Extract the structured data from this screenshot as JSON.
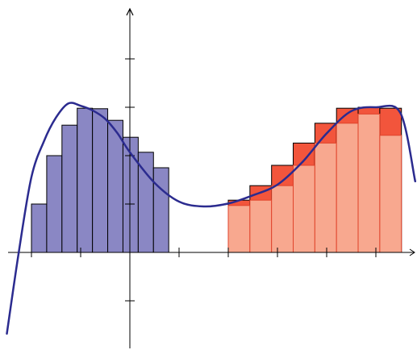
{
  "chart_data": {
    "type": "bar",
    "title": "",
    "xlabel": "",
    "ylabel": "",
    "grid": false,
    "xlim": [
      -2.5,
      6
    ],
    "ylim": [
      -2,
      5
    ],
    "x_ticks": [
      -2,
      -1,
      0,
      1,
      2,
      3,
      4,
      5
    ],
    "y_ticks": [
      -1,
      1,
      2,
      3,
      4
    ],
    "curve": {
      "description": "cubic function",
      "points": [
        [
          -2.5,
          -1.68
        ],
        [
          -2.25,
          0.06
        ],
        [
          -2.0,
          1.56
        ],
        [
          -1.75,
          2.29
        ],
        [
          -1.5,
          2.79
        ],
        [
          -1.25,
          3.08
        ],
        [
          -1.0,
          3.03
        ],
        [
          -0.75,
          2.93
        ],
        [
          -0.5,
          2.76
        ],
        [
          -0.25,
          2.46
        ],
        [
          0.0,
          2.07
        ],
        [
          0.5,
          1.44
        ],
        [
          1.0,
          1.05
        ],
        [
          1.5,
          0.95
        ],
        [
          2.0,
          1.01
        ],
        [
          2.5,
          1.18
        ],
        [
          3.0,
          1.4
        ],
        [
          3.5,
          1.86
        ],
        [
          4.0,
          2.46
        ],
        [
          4.5,
          2.92
        ],
        [
          5.0,
          3.0
        ],
        [
          5.5,
          2.88
        ],
        [
          5.8,
          1.47
        ]
      ]
    },
    "series": [
      {
        "name": "",
        "kind": "left_riemann",
        "color": "#8a87c4",
        "width": 0.31,
        "x": [
          -2.0,
          -1.69,
          -1.38,
          -1.07,
          -0.76,
          -0.45,
          -0.14,
          0.17,
          0.48
        ],
        "values": [
          1.0,
          2.0,
          2.63,
          2.98,
          2.97,
          2.73,
          2.38,
          2.07,
          1.75
        ]
      },
      {
        "name": "",
        "kind": "upper_riemann",
        "color": "#f2553c",
        "width": 0.44,
        "x": [
          2.0,
          2.44,
          2.88,
          3.32,
          3.76,
          4.2,
          4.64,
          5.08
        ],
        "values": [
          1.08,
          1.38,
          1.8,
          2.26,
          2.67,
          2.98,
          3.0,
          2.98
        ]
      },
      {
        "name": "",
        "kind": "lower_riemann",
        "color": "#f8a88f",
        "width": 0.44,
        "x": [
          2.0,
          2.44,
          2.88,
          3.32,
          3.76,
          4.2,
          4.64,
          5.08
        ],
        "values": [
          0.97,
          1.08,
          1.38,
          1.8,
          2.26,
          2.67,
          2.86,
          2.42
        ]
      }
    ]
  }
}
